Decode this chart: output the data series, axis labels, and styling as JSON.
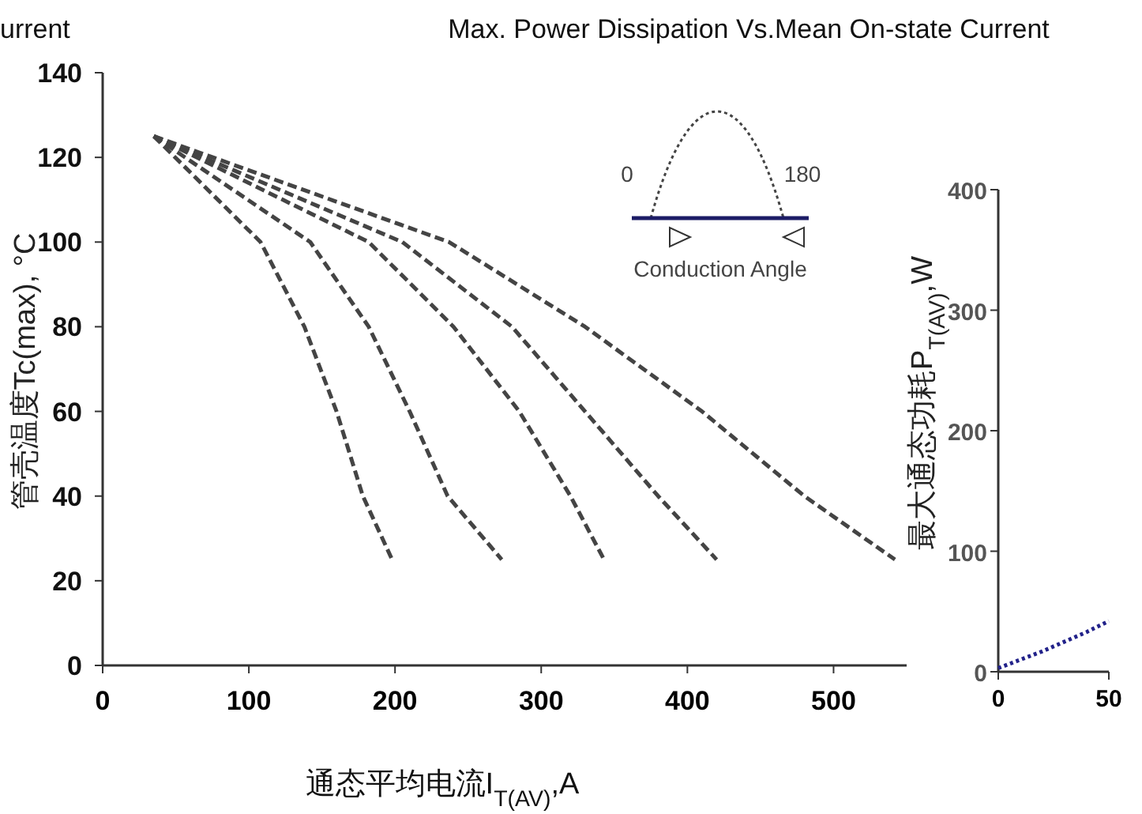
{
  "chart_data": [
    {
      "type": "line",
      "title": "urrent",
      "xlabel": "通态平均电流I$_{T(AV)}$,A",
      "ylabel": "管壳温度Tc(max), °C",
      "xlim": [
        0,
        550
      ],
      "xticks": [
        0,
        100,
        200,
        300,
        400,
        500
      ],
      "ylim": [
        0,
        140
      ],
      "yticks": [
        0,
        20,
        40,
        60,
        80,
        100,
        120,
        140
      ],
      "line_style": "dashed",
      "marker": "none",
      "grid": false,
      "annotations": [
        "0",
        "180",
        "Conduction Angle"
      ],
      "series": [
        {
          "color": "#444444",
          "x": [
            35,
            108,
            138,
            160,
            178,
            198
          ],
          "values": [
            125,
            100,
            80,
            60,
            40,
            25
          ]
        },
        {
          "color": "#444444",
          "x": [
            35,
            142,
            182,
            210,
            236,
            273
          ],
          "values": [
            125,
            100,
            80,
            60,
            40,
            25
          ]
        },
        {
          "color": "#444444",
          "x": [
            35,
            182,
            240,
            285,
            320,
            343
          ],
          "values": [
            125,
            100,
            80,
            60,
            40,
            25
          ]
        },
        {
          "color": "#444444",
          "x": [
            35,
            205,
            280,
            330,
            380,
            420
          ],
          "values": [
            125,
            100,
            80,
            60,
            40,
            25
          ]
        },
        {
          "color": "#444444",
          "x": [
            35,
            237,
            330,
            410,
            480,
            542
          ],
          "values": [
            125,
            100,
            80,
            60,
            40,
            25
          ]
        }
      ]
    },
    {
      "type": "line",
      "title": "Max. Power Dissipation Vs.Mean On-state Current",
      "ylabel": "最大通态功耗P$_{T(AV)}$,W",
      "xlim": [
        0,
        50
      ],
      "xticks": [
        0,
        50
      ],
      "ylim": [
        0,
        400
      ],
      "yticks": [
        0,
        100,
        200,
        300,
        400
      ],
      "line_style": "dotted",
      "marker": "none",
      "grid": false,
      "series": [
        {
          "color": "#22228a",
          "x": [
            0,
            10,
            20,
            30,
            40,
            50
          ],
          "values": [
            3,
            10,
            17,
            25,
            33,
            42
          ]
        }
      ]
    }
  ]
}
